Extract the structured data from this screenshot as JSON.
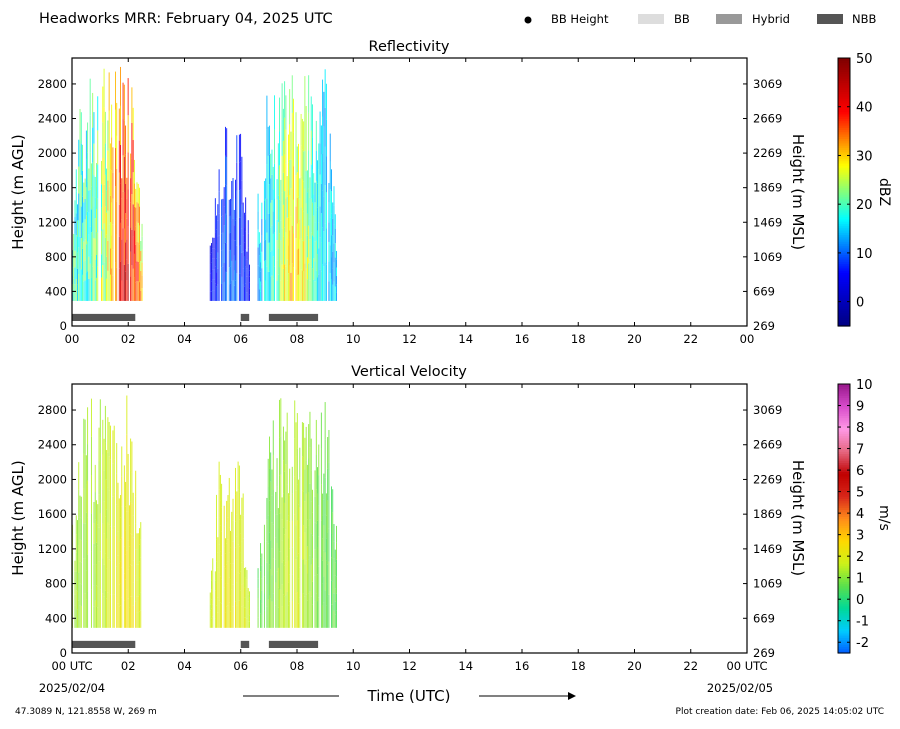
{
  "header": {
    "title": "Headworks MRR:  February 04, 2025 UTC",
    "legend": [
      {
        "label": "BB Height",
        "symbol": "dot",
        "color": "#000000"
      },
      {
        "label": "BB",
        "symbol": "rect",
        "color": "#dddddd"
      },
      {
        "label": "Hybrid",
        "symbol": "rect",
        "color": "#999999"
      },
      {
        "label": "NBB",
        "symbol": "rect",
        "color": "#555555"
      }
    ]
  },
  "footer": {
    "location": "47.3089 N, 121.8558 W, 269 m",
    "creation": "Plot creation date: Feb 06, 2025 14:05:02 UTC",
    "xlabel": "Time (UTC)",
    "start_date": "2025/02/04",
    "end_date": "2025/02/05"
  },
  "chart_data": [
    {
      "type": "heatmap",
      "title": "Reflectivity",
      "ylabel": "Height (m AGL)",
      "ylabel_right": "Height (m MSL)",
      "xlim": [
        0,
        24
      ],
      "ylim": [
        0,
        3100
      ],
      "x_ticks": [
        "00",
        "02",
        "04",
        "06",
        "08",
        "10",
        "12",
        "14",
        "16",
        "18",
        "20",
        "22",
        "00"
      ],
      "y_ticks": [
        0,
        400,
        800,
        1200,
        1600,
        2000,
        2400,
        2800
      ],
      "y_ticks_right": [
        "269",
        "669",
        "1069",
        "1469",
        "1869",
        "2269",
        "2669",
        "3069"
      ],
      "colorbar": {
        "label": "dBZ",
        "range": [
          -5,
          50
        ],
        "ticks": [
          "0",
          "10",
          "20",
          "30",
          "40",
          "50"
        ],
        "tick_values": [
          0,
          10,
          20,
          30,
          40,
          50
        ],
        "colormap": "jet"
      },
      "echo_periods": [
        {
          "start": 0.0,
          "end": 2.5,
          "top": 3000,
          "min": 3,
          "max": 45,
          "peak": 1.9
        },
        {
          "start": 4.9,
          "end": 6.3,
          "top": 2400,
          "min": -3,
          "max": 12,
          "peak": 5.6
        },
        {
          "start": 6.6,
          "end": 9.4,
          "top": 3000,
          "min": 3,
          "max": 33,
          "peak": 7.9
        }
      ],
      "bb_class_bars": [
        {
          "start": 0.0,
          "end": 2.25,
          "class": "NBB"
        },
        {
          "start": 6.0,
          "end": 6.3,
          "class": "NBB"
        },
        {
          "start": 7.0,
          "end": 8.75,
          "class": "NBB"
        }
      ]
    },
    {
      "type": "heatmap",
      "title": "Vertical Velocity",
      "ylabel": "Height (m AGL)",
      "ylabel_right": "Height (m MSL)",
      "xlim": [
        0,
        24
      ],
      "ylim": [
        0,
        3100
      ],
      "x_ticks": [
        "00 UTC",
        "02",
        "04",
        "06",
        "08",
        "10",
        "12",
        "14",
        "16",
        "18",
        "20",
        "22",
        "00 UTC"
      ],
      "y_ticks": [
        0,
        400,
        800,
        1200,
        1600,
        2000,
        2400,
        2800
      ],
      "y_ticks_right": [
        "269",
        "669",
        "1069",
        "1469",
        "1869",
        "2269",
        "2669",
        "3069"
      ],
      "colorbar": {
        "label": "m/s",
        "range": [
          -2.5,
          10
        ],
        "ticks": [
          "-2",
          "-1",
          "0",
          "1",
          "2",
          "3",
          "4",
          "5",
          "6",
          "7",
          "8",
          "9",
          "10"
        ],
        "tick_values": [
          -2,
          -1,
          0,
          1,
          2,
          3,
          4,
          5,
          6,
          7,
          8,
          9,
          10
        ],
        "colormap": "velocity"
      },
      "echo_periods": [
        {
          "start": 0.0,
          "end": 2.5,
          "top": 3000,
          "min": 0.5,
          "max": 2.6,
          "peak": 1.9
        },
        {
          "start": 4.9,
          "end": 6.3,
          "top": 2400,
          "min": 0.8,
          "max": 2.4,
          "peak": 5.6
        },
        {
          "start": 6.6,
          "end": 9.4,
          "top": 3000,
          "min": -0.2,
          "max": 2.0,
          "peak": 7.9
        }
      ],
      "bb_class_bars": [
        {
          "start": 0.0,
          "end": 2.25,
          "class": "NBB"
        },
        {
          "start": 6.0,
          "end": 6.3,
          "class": "NBB"
        },
        {
          "start": 7.0,
          "end": 8.75,
          "class": "NBB"
        }
      ]
    }
  ]
}
